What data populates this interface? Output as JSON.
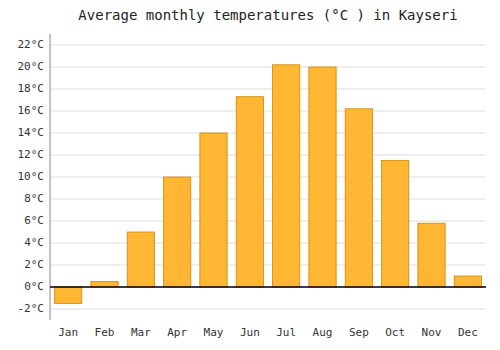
{
  "chart_data": {
    "type": "bar",
    "title": "Average monthly temperatures (°C ) in Kayseri",
    "categories": [
      "Jan",
      "Feb",
      "Mar",
      "Apr",
      "May",
      "Jun",
      "Jul",
      "Aug",
      "Sep",
      "Oct",
      "Nov",
      "Dec"
    ],
    "values": [
      -1.5,
      0.5,
      5.0,
      10.0,
      14.0,
      17.3,
      20.2,
      20.0,
      16.2,
      11.5,
      5.8,
      1.0
    ],
    "color": "#FFB733",
    "ylim": [
      -3,
      23
    ],
    "yticks": [
      {
        "value": -2,
        "label": "-2°C"
      },
      {
        "value": 0,
        "label": "0°C"
      },
      {
        "value": 2,
        "label": "2°C"
      },
      {
        "value": 4,
        "label": "4°C"
      },
      {
        "value": 6,
        "label": "6°C"
      },
      {
        "value": 8,
        "label": "8°C"
      },
      {
        "value": 10,
        "label": "10°C"
      },
      {
        "value": 12,
        "label": "12°C"
      },
      {
        "value": 14,
        "label": "14°C"
      },
      {
        "value": 16,
        "label": "16°C"
      },
      {
        "value": 18,
        "label": "18°C"
      },
      {
        "value": 20,
        "label": "20°C"
      },
      {
        "value": 22,
        "label": "22°C"
      }
    ],
    "grid": true
  }
}
